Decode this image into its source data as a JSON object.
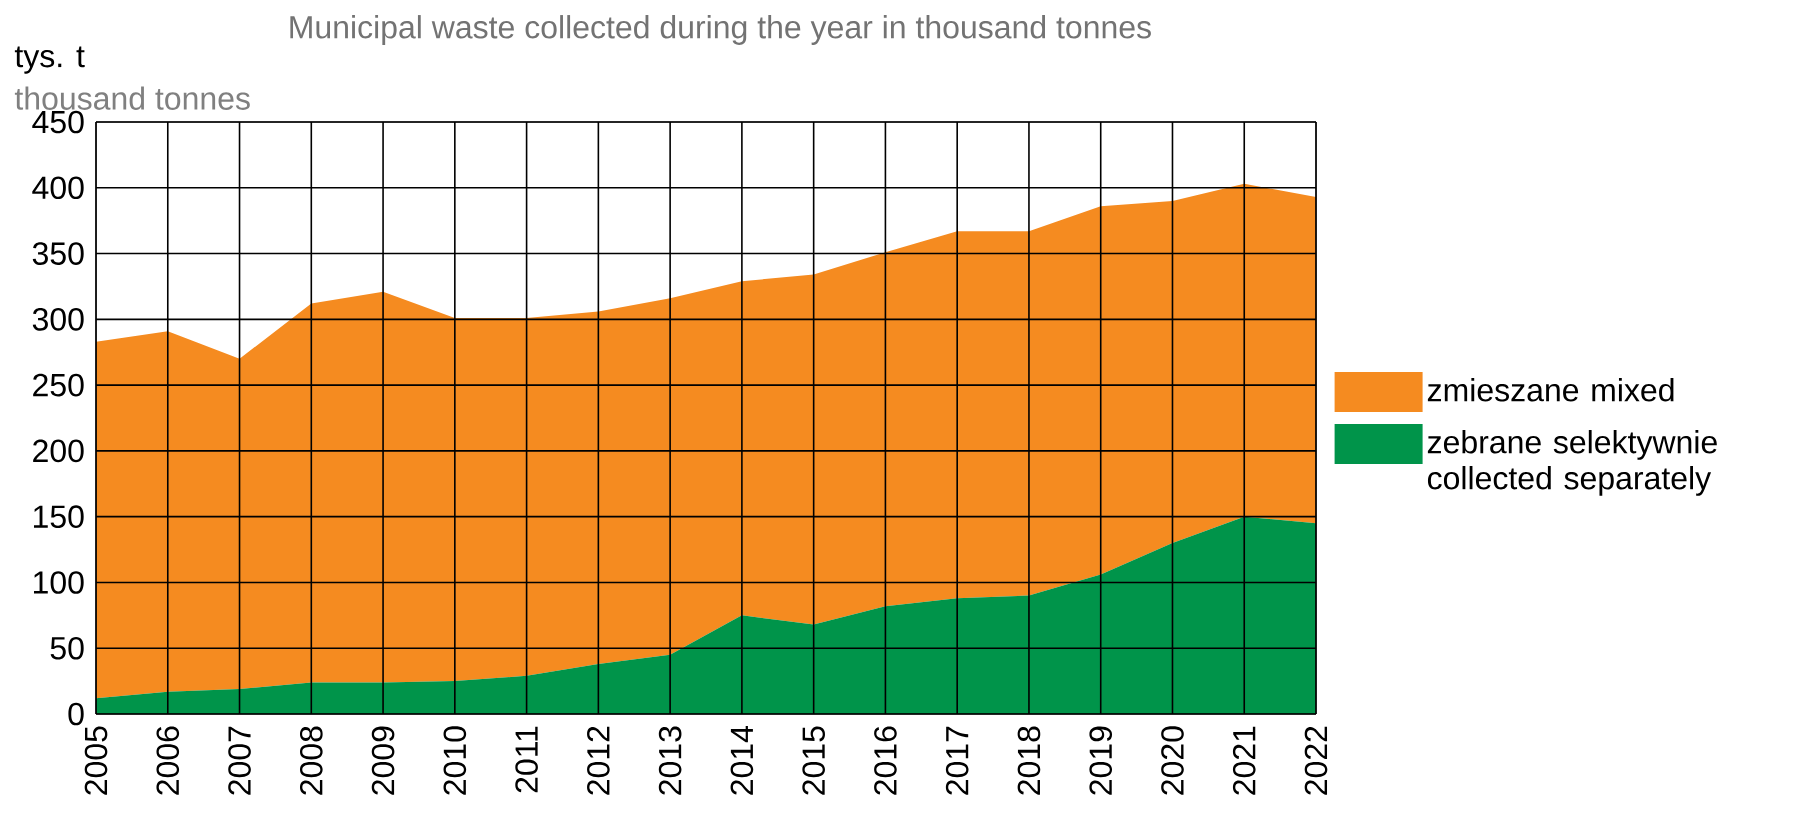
{
  "chart_data": {
    "type": "area",
    "stacked": true,
    "title": "Municipal waste collected during the year in thousand tonnes",
    "annotations": [
      "tys. t",
      "thousand tonnes"
    ],
    "categories": [
      "2005",
      "2006",
      "2007",
      "2008",
      "2009",
      "2010",
      "2011",
      "2012",
      "2013",
      "2014",
      "2015",
      "2016",
      "2017",
      "2018",
      "2019",
      "2020",
      "2021",
      "2022"
    ],
    "series": [
      {
        "name": "zebrane selektywnie collected separately",
        "color": "#00944a",
        "values": [
          12,
          17,
          19,
          24,
          24,
          25,
          29,
          38,
          45,
          75,
          68,
          82,
          88,
          90,
          106,
          130,
          150,
          145
        ]
      },
      {
        "name": "zmieszane mixed",
        "color": "#f58b20",
        "values": [
          271,
          274,
          251,
          288,
          297,
          276,
          272,
          268,
          271,
          254,
          266,
          269,
          279,
          277,
          280,
          260,
          253,
          248
        ]
      }
    ],
    "ylim": [
      0,
      450
    ],
    "yticks": [
      0,
      50,
      100,
      150,
      200,
      250,
      300,
      350,
      400,
      450
    ],
    "grid": true,
    "legend": "right"
  }
}
